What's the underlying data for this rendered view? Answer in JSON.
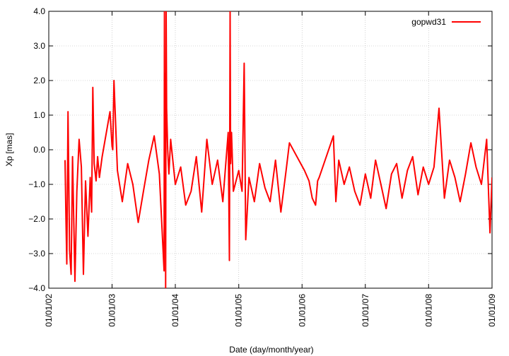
{
  "chart_data": {
    "type": "line",
    "xlabel": "Date (day/month/year)",
    "ylabel": "Xp [mas]",
    "ylim": [
      -4.0,
      4.0
    ],
    "xlim": [
      "2002-01-01",
      "2009-01-01"
    ],
    "y_ticks": [
      "4.0",
      "3.0",
      "2.0",
      "1.0",
      "0.0",
      "−1.0",
      "−2.0",
      "−3.0",
      "−4.0"
    ],
    "x_ticks": [
      {
        "date": "2002-01-01",
        "label": "01/01/02"
      },
      {
        "date": "2003-01-01",
        "label": "01/01/03"
      },
      {
        "date": "2004-01-01",
        "label": "01/01/04"
      },
      {
        "date": "2005-01-01",
        "label": "01/01/05"
      },
      {
        "date": "2006-01-01",
        "label": "01/01/06"
      },
      {
        "date": "2007-01-01",
        "label": "01/01/07"
      },
      {
        "date": "2008-01-01",
        "label": "01/01/08"
      },
      {
        "date": "2009-01-01",
        "label": "01/01/09"
      }
    ],
    "grid": true,
    "legend_position": "top-right",
    "series": [
      {
        "name": "gopwd31",
        "color": "#ff0000",
        "x": [
          "2002-04-05",
          "2002-04-10",
          "2002-04-15",
          "2002-04-22",
          "2002-05-01",
          "2002-05-10",
          "2002-05-18",
          "2002-06-01",
          "2002-06-12",
          "2002-06-25",
          "2002-07-08",
          "2002-07-20",
          "2002-08-01",
          "2002-08-15",
          "2002-08-28",
          "2002-09-05",
          "2002-09-12",
          "2002-09-20",
          "2002-10-01",
          "2002-10-10",
          "2002-10-20",
          "2002-11-05",
          "2002-12-20",
          "2003-01-01",
          "2003-01-05",
          "2003-01-12",
          "2003-02-01",
          "2003-03-01",
          "2003-04-01",
          "2003-05-01",
          "2003-06-01",
          "2003-07-01",
          "2003-08-01",
          "2003-09-01",
          "2003-10-01",
          "2003-10-28",
          "2003-10-30",
          "2003-11-01",
          "2003-11-04",
          "2003-11-06",
          "2003-11-09",
          "2003-11-12",
          "2003-11-18",
          "2003-11-25",
          "2003-12-05",
          "2004-01-01",
          "2004-02-01",
          "2004-03-01",
          "2004-04-01",
          "2004-05-01",
          "2004-06-01",
          "2004-07-01",
          "2004-08-01",
          "2004-09-01",
          "2004-10-01",
          "2004-11-01",
          "2004-11-08",
          "2004-11-12",
          "2004-11-15",
          "2004-11-20",
          "2004-12-01",
          "2005-01-01",
          "2005-01-20",
          "2005-02-01",
          "2005-02-10",
          "2005-03-01",
          "2005-04-01",
          "2005-05-01",
          "2005-06-01",
          "2005-07-01",
          "2005-08-01",
          "2005-09-01",
          "2005-10-01",
          "2005-10-20",
          "2006-01-15",
          "2006-02-10",
          "2006-03-01",
          "2006-03-20",
          "2006-04-01",
          "2006-04-10",
          "2006-07-01",
          "2006-07-15",
          "2006-08-01",
          "2006-09-01",
          "2006-10-01",
          "2006-11-01",
          "2006-12-01",
          "2007-01-01",
          "2007-02-01",
          "2007-03-01",
          "2007-04-01",
          "2007-05-01",
          "2007-06-01",
          "2007-07-01",
          "2007-08-01",
          "2007-09-01",
          "2007-10-01",
          "2007-11-01",
          "2007-12-01",
          "2008-01-01",
          "2008-02-01",
          "2008-03-01",
          "2008-04-01",
          "2008-05-01",
          "2008-06-01",
          "2008-07-01",
          "2008-08-01",
          "2008-09-01",
          "2008-10-01",
          "2008-11-01",
          "2008-12-01",
          "2008-12-20",
          "2009-01-01"
        ],
        "y": [
          -0.3,
          -2.0,
          -3.3,
          1.1,
          -2.9,
          -3.6,
          -0.2,
          -3.8,
          -1.2,
          0.3,
          -0.5,
          -3.6,
          -0.9,
          -2.5,
          -0.8,
          -1.8,
          1.8,
          -0.4,
          -0.9,
          -0.2,
          -0.8,
          -0.2,
          1.1,
          0.1,
          0.0,
          2.0,
          -0.6,
          -1.5,
          -0.4,
          -1.0,
          -2.1,
          -1.2,
          -0.3,
          0.4,
          -0.7,
          -3.5,
          4.0,
          -0.5,
          2.2,
          -4.0,
          4.0,
          1.2,
          0.0,
          -0.7,
          0.3,
          -1.0,
          -0.5,
          -1.6,
          -1.2,
          -0.2,
          -1.8,
          0.3,
          -1.0,
          -0.3,
          -1.5,
          0.5,
          -3.2,
          4.0,
          -0.4,
          0.5,
          -1.2,
          -0.6,
          -1.2,
          2.5,
          -2.6,
          -0.8,
          -1.5,
          -0.4,
          -1.1,
          -1.5,
          -0.3,
          -1.8,
          -0.6,
          0.2,
          -0.6,
          -0.9,
          -1.4,
          -1.6,
          -0.9,
          -0.8,
          0.4,
          -1.5,
          -0.3,
          -1.0,
          -0.5,
          -1.2,
          -1.6,
          -0.7,
          -1.4,
          -0.3,
          -1.0,
          -1.7,
          -0.7,
          -0.4,
          -1.4,
          -0.6,
          -0.2,
          -1.3,
          -0.5,
          -1.0,
          -0.5,
          1.2,
          -1.4,
          -0.3,
          -0.8,
          -1.5,
          -0.7,
          0.2,
          -0.5,
          -1.0,
          0.3,
          -2.4,
          -0.8
        ]
      }
    ]
  }
}
